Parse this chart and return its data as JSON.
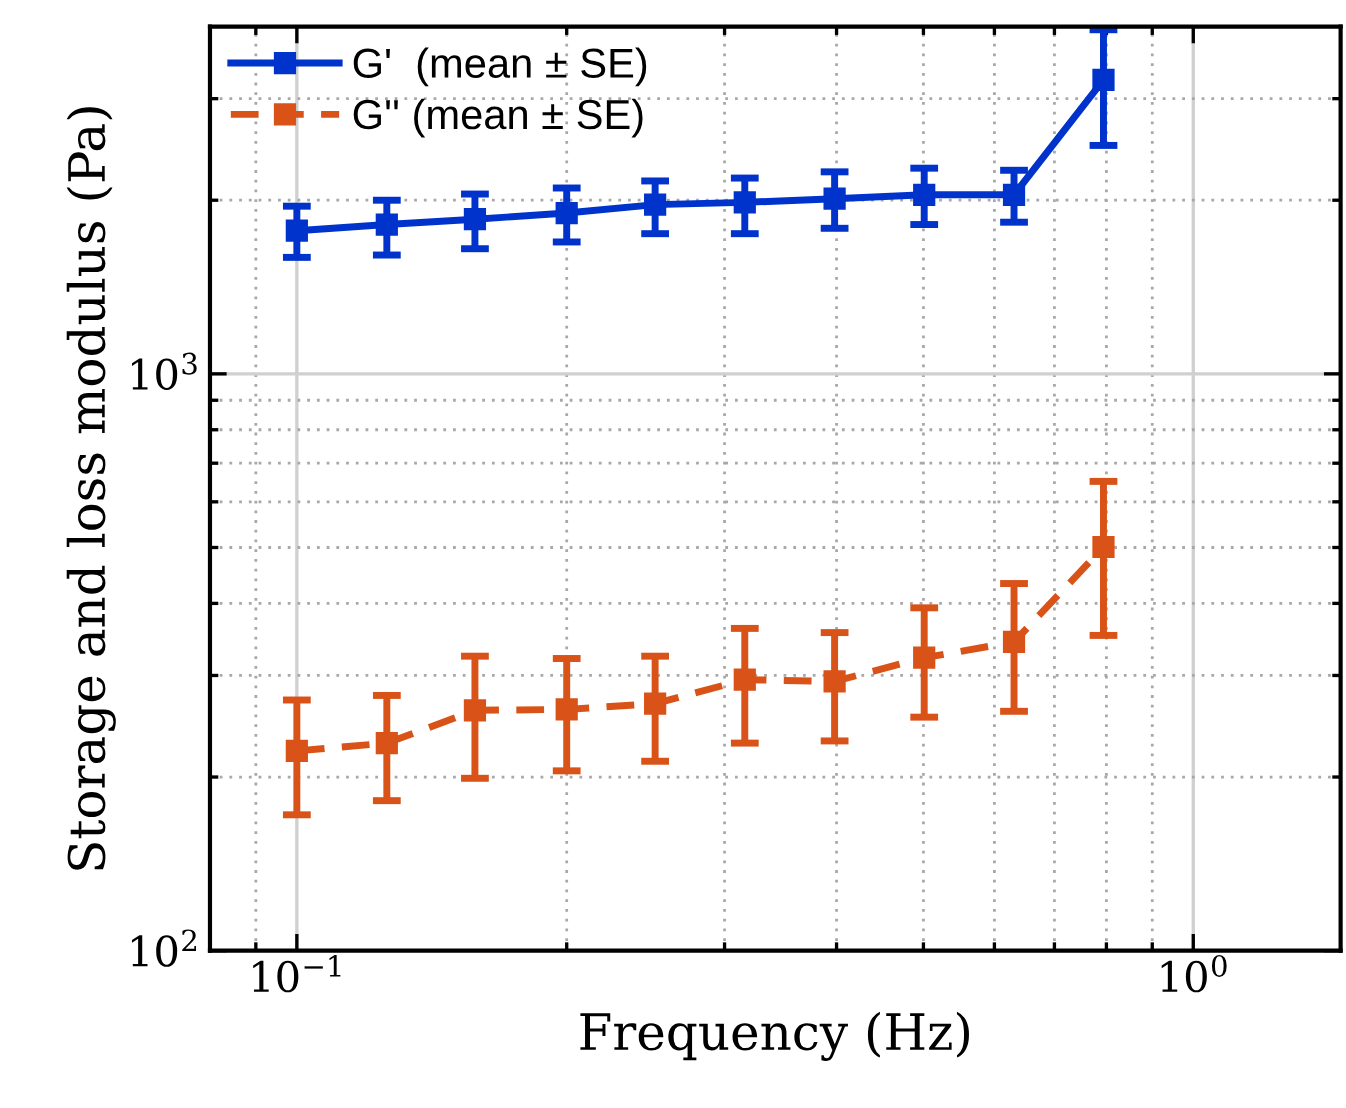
{
  "chart_data": {
    "type": "line",
    "xlabel": "Frequency (Hz)",
    "ylabel": "Storage and loss modulus (Pa)",
    "log": "xy",
    "grid": true,
    "legend": "top left",
    "marker": "square",
    "xlim": [
      0.08,
      1.46
    ],
    "ylim": [
      100,
      4000
    ],
    "xticks": [
      {
        "value": 0.09,
        "label": null
      },
      {
        "value": 0.1,
        "label": "10$^{−1}$"
      },
      {
        "value": 0.2,
        "label": null
      },
      {
        "value": 0.3,
        "label": null
      },
      {
        "value": 0.4,
        "label": null
      },
      {
        "value": 0.5,
        "label": null
      },
      {
        "value": 0.6,
        "label": null
      },
      {
        "value": 0.7,
        "label": null
      },
      {
        "value": 0.8,
        "label": null
      },
      {
        "value": 0.9,
        "label": null
      },
      {
        "value": 1,
        "label": "10$^{0}$"
      }
    ],
    "yticks": [
      {
        "value": 100,
        "label": "10$^{2}$"
      },
      {
        "value": 200,
        "label": null
      },
      {
        "value": 300,
        "label": null
      },
      {
        "value": 400,
        "label": null
      },
      {
        "value": 500,
        "label": null
      },
      {
        "value": 600,
        "label": null
      },
      {
        "value": 700,
        "label": null
      },
      {
        "value": 800,
        "label": null
      },
      {
        "value": 900,
        "label": null
      },
      {
        "value": 1000,
        "label": "10$^{3}$"
      },
      {
        "value": 2000,
        "label": null
      },
      {
        "value": 3000,
        "label": null
      }
    ],
    "x": [
      0.1,
      0.126,
      0.158,
      0.2,
      0.251,
      0.316,
      0.398,
      0.501,
      0.631,
      0.794
    ],
    "series": [
      {
        "name": "G'  (mean ± SE)",
        "color": "#0033cc",
        "line_style": "solid",
        "values": [
          1771,
          1815,
          1854,
          1900,
          1965,
          1983,
          2012,
          2044,
          2044,
          3235
        ],
        "errors": [
          [
            1592,
            1953
          ],
          [
            1607,
            2000
          ],
          [
            1648,
            2050
          ],
          [
            1693,
            2100
          ],
          [
            1750,
            2160
          ],
          [
            1750,
            2185
          ],
          [
            1788,
            2240
          ],
          [
            1815,
            2273
          ],
          [
            1832,
            2254
          ],
          [
            2489,
            3950
          ]
        ]
      },
      {
        "name": "G'' (mean ± SE)",
        "color": "#d95319",
        "line_style": "dashed",
        "values": [
          222,
          229,
          261,
          262,
          268,
          295,
          293,
          322,
          343,
          501
        ],
        "errors": [
          [
            172,
            272
          ],
          [
            182,
            277
          ],
          [
            199,
            324
          ],
          [
            205,
            321
          ],
          [
            213,
            324
          ],
          [
            229,
            362
          ],
          [
            231,
            356
          ],
          [
            254,
            393
          ],
          [
            260,
            433
          ],
          [
            352,
            651
          ]
        ]
      }
    ]
  }
}
